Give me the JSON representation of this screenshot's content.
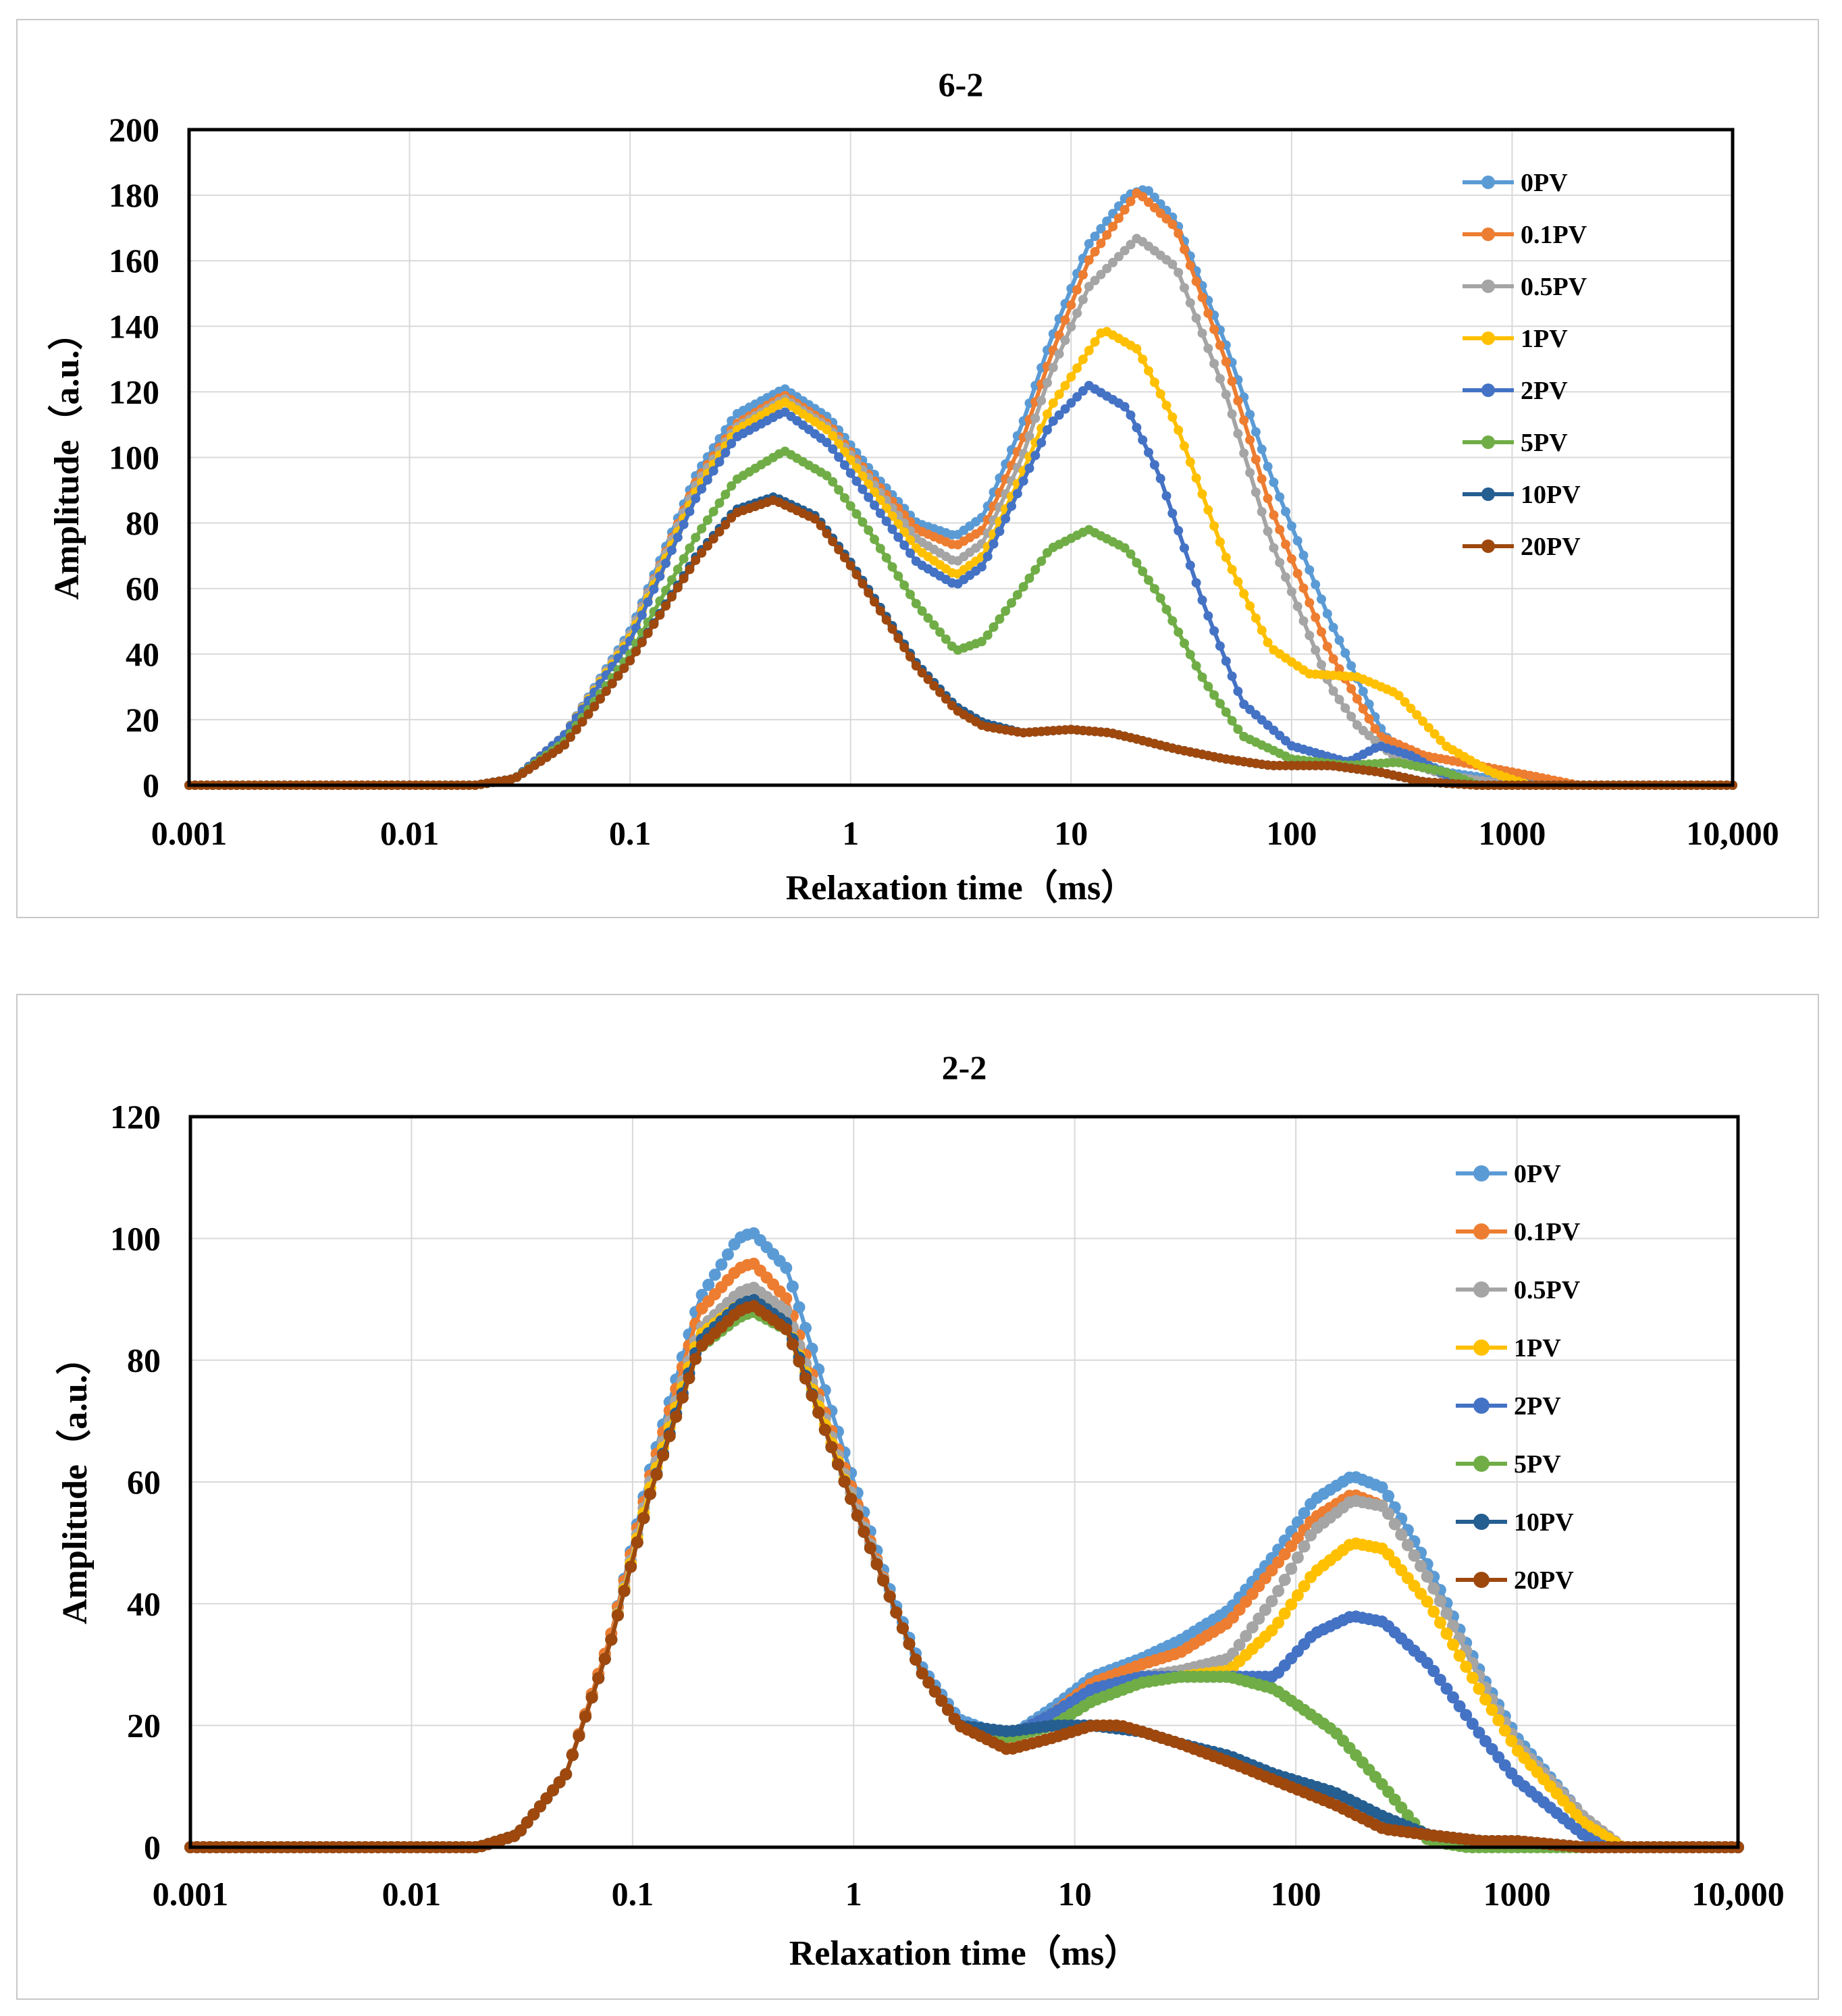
{
  "chart_data": [
    {
      "type": "line",
      "title": "6-2",
      "xlabel": "Relaxation time（ms）",
      "ylabel": "Amplitude（a.u.）",
      "xscale": "log",
      "xlim": [
        0.001,
        10000
      ],
      "ylim": [
        0,
        200
      ],
      "xticks": [
        0.001,
        0.01,
        0.1,
        1,
        10,
        100,
        1000,
        10000
      ],
      "xtick_labels": [
        "0.001",
        "0.01",
        "0.1",
        "1",
        "10",
        "100",
        "1000",
        "10,000"
      ],
      "yticks": [
        0,
        20,
        40,
        60,
        80,
        100,
        120,
        140,
        160,
        180,
        200
      ],
      "grid": true,
      "legend_position": "top-right",
      "series": [
        {
          "name": "0PV",
          "color": "#5b9bd5",
          "x": [
            0.001,
            0.02,
            0.03,
            0.05,
            0.1,
            0.2,
            0.3,
            0.5,
            0.8,
            1.2,
            2,
            3,
            4,
            6,
            8,
            12,
            18,
            22,
            30,
            50,
            80,
            150,
            250,
            300,
            500,
            1000,
            2000,
            10000
          ],
          "y": [
            0,
            0,
            2,
            15,
            47,
            95,
            113,
            121,
            112,
            97,
            80,
            76,
            82,
            110,
            135,
            165,
            180,
            182,
            172,
            135,
            95,
            50,
            18,
            10,
            4,
            1,
            0,
            0
          ]
        },
        {
          "name": "0.1PV",
          "color": "#ed7d31",
          "x": [
            0.001,
            0.02,
            0.03,
            0.05,
            0.1,
            0.2,
            0.3,
            0.5,
            0.8,
            1.2,
            2,
            3,
            4,
            6,
            8,
            12,
            20,
            30,
            50,
            80,
            150,
            250,
            400,
            700,
            1200,
            2000,
            10000
          ],
          "y": [
            0,
            0,
            2,
            15,
            46,
            93,
            110,
            119,
            110,
            95,
            78,
            73,
            78,
            105,
            130,
            160,
            181,
            170,
            130,
            85,
            40,
            15,
            9,
            6,
            3,
            0,
            0
          ]
        },
        {
          "name": "0.5PV",
          "color": "#a5a5a5",
          "x": [
            0.001,
            0.02,
            0.03,
            0.05,
            0.1,
            0.2,
            0.3,
            0.5,
            0.8,
            1.2,
            2,
            3,
            4,
            6,
            8,
            12,
            20,
            30,
            50,
            80,
            150,
            200,
            300,
            500,
            1000,
            10000
          ],
          "y": [
            0,
            0,
            2,
            15,
            46,
            92,
            109,
            118,
            109,
            94,
            75,
            68,
            74,
            100,
            125,
            152,
            167,
            158,
            120,
            75,
            30,
            18,
            8,
            3,
            0,
            0
          ]
        },
        {
          "name": "1PV",
          "color": "#ffc000",
          "x": [
            0.001,
            0.02,
            0.03,
            0.05,
            0.1,
            0.2,
            0.3,
            0.5,
            0.8,
            1.2,
            2,
            3,
            4,
            6,
            8,
            14,
            20,
            30,
            50,
            80,
            120,
            200,
            300,
            500,
            800,
            1200,
            10000
          ],
          "y": [
            0,
            0,
            2,
            15,
            45,
            90,
            108,
            117,
            108,
            92,
            72,
            64,
            70,
            95,
            115,
            139,
            133,
            110,
            70,
            42,
            34,
            33,
            28,
            12,
            4,
            0,
            0
          ]
        },
        {
          "name": "2PV",
          "color": "#4472c4",
          "x": [
            0.001,
            0.02,
            0.03,
            0.05,
            0.1,
            0.2,
            0.3,
            0.5,
            0.8,
            1.2,
            2,
            3,
            4,
            6,
            8,
            12,
            18,
            25,
            40,
            60,
            100,
            180,
            250,
            350,
            500,
            700,
            10000
          ],
          "y": [
            0,
            0,
            2,
            15,
            44,
            88,
            106,
            114,
            104,
            88,
            68,
            61,
            67,
            92,
            110,
            122,
            115,
            95,
            55,
            25,
            12,
            7,
            12,
            9,
            3,
            0,
            0
          ]
        },
        {
          "name": "5PV",
          "color": "#70ad47",
          "x": [
            0.001,
            0.02,
            0.03,
            0.05,
            0.1,
            0.2,
            0.3,
            0.5,
            0.8,
            1.2,
            2,
            3,
            4,
            6,
            8,
            12,
            18,
            25,
            40,
            60,
            100,
            180,
            300,
            500,
            700,
            10000
          ],
          "y": [
            0,
            0,
            2,
            13,
            40,
            76,
            93,
            102,
            94,
            78,
            55,
            41,
            44,
            60,
            72,
            78,
            72,
            58,
            32,
            15,
            8,
            6,
            7,
            4,
            0,
            0
          ]
        },
        {
          "name": "10PV",
          "color": "#255e91",
          "x": [
            0.001,
            0.02,
            0.03,
            0.05,
            0.1,
            0.2,
            0.3,
            0.45,
            0.7,
            1,
            1.5,
            2,
            3,
            4,
            6,
            10,
            15,
            20,
            30,
            50,
            80,
            150,
            250,
            400,
            700,
            10000
          ],
          "y": [
            0,
            0,
            2,
            12,
            38,
            70,
            84,
            88,
            82,
            68,
            50,
            37,
            24,
            19,
            16,
            17,
            16,
            14,
            11,
            8,
            6,
            6,
            4,
            1,
            0,
            0
          ]
        },
        {
          "name": "20PV",
          "color": "#9e480e",
          "x": [
            0.001,
            0.02,
            0.03,
            0.05,
            0.1,
            0.2,
            0.3,
            0.45,
            0.7,
            1,
            1.5,
            2,
            3,
            4,
            6,
            10,
            15,
            20,
            30,
            50,
            80,
            150,
            250,
            400,
            700,
            10000
          ],
          "y": [
            0,
            0,
            2,
            12,
            38,
            69,
            83,
            87,
            81,
            67,
            49,
            36,
            23,
            18,
            16,
            17,
            16,
            14,
            11,
            8,
            6,
            6,
            4,
            1,
            0,
            0
          ]
        }
      ]
    },
    {
      "type": "line",
      "title": "2-2",
      "xlabel": "Relaxation time（ms）",
      "ylabel": "Amplitude（a.u.）",
      "xscale": "log",
      "xlim": [
        0.001,
        10000
      ],
      "ylim": [
        0,
        120
      ],
      "xticks": [
        0.001,
        0.01,
        0.1,
        1,
        10,
        100,
        1000,
        10000
      ],
      "xtick_labels": [
        "0.001",
        "0.01",
        "0.1",
        "1",
        "10",
        "100",
        "1000",
        "10,000"
      ],
      "yticks": [
        0,
        20,
        40,
        60,
        80,
        100,
        120
      ],
      "grid": true,
      "legend_position": "top-right",
      "series": [
        {
          "name": "0PV",
          "color": "#5b9bd5",
          "x": [
            0.001,
            0.02,
            0.03,
            0.05,
            0.08,
            0.12,
            0.2,
            0.3,
            0.35,
            0.5,
            0.7,
            1,
            1.5,
            2,
            3,
            5,
            8,
            12,
            20,
            30,
            50,
            80,
            120,
            180,
            250,
            400,
            700,
            1000,
            2000,
            3000,
            10000
          ],
          "y": [
            0,
            0,
            2,
            12,
            35,
            62,
            90,
            100,
            101,
            95,
            78,
            60,
            41,
            30,
            21,
            18,
            23,
            28,
            31,
            34,
            39,
            48,
            57,
            61,
            59,
            46,
            28,
            18,
            5,
            0,
            0
          ]
        },
        {
          "name": "0.1PV",
          "color": "#ed7d31",
          "x": [
            0.001,
            0.02,
            0.03,
            0.05,
            0.08,
            0.12,
            0.2,
            0.3,
            0.35,
            0.5,
            0.7,
            1,
            1.5,
            2,
            3,
            5,
            8,
            12,
            20,
            30,
            50,
            80,
            120,
            180,
            250,
            400,
            700,
            1000,
            2000,
            3000,
            10000
          ],
          "y": [
            0,
            0,
            2,
            12,
            35,
            61,
            88,
            95,
            96,
            90,
            74,
            58,
            40,
            29,
            20,
            17,
            22,
            27,
            30,
            32,
            37,
            46,
            54,
            58,
            56,
            44,
            27,
            17,
            5,
            0,
            0
          ]
        },
        {
          "name": "0.5PV",
          "color": "#a5a5a5",
          "x": [
            0.001,
            0.02,
            0.03,
            0.05,
            0.08,
            0.12,
            0.2,
            0.3,
            0.35,
            0.5,
            0.7,
            1,
            1.5,
            2,
            3,
            5,
            8,
            12,
            20,
            30,
            50,
            80,
            120,
            180,
            250,
            400,
            700,
            1000,
            2000,
            3000,
            10000
          ],
          "y": [
            0,
            0,
            2,
            12,
            34,
            60,
            85,
            91,
            92,
            88,
            73,
            57,
            40,
            29,
            20,
            18,
            22,
            26,
            28,
            29,
            31,
            41,
            52,
            57,
            56,
            44,
            27,
            17,
            5,
            0,
            0
          ]
        },
        {
          "name": "1PV",
          "color": "#ffc000",
          "x": [
            0.001,
            0.02,
            0.03,
            0.05,
            0.08,
            0.12,
            0.2,
            0.3,
            0.35,
            0.5,
            0.7,
            1,
            1.5,
            2,
            3,
            5,
            8,
            12,
            20,
            30,
            50,
            80,
            120,
            180,
            250,
            400,
            700,
            1000,
            2000,
            3000,
            10000
          ],
          "y": [
            0,
            0,
            2,
            12,
            34,
            59,
            84,
            89,
            90,
            86,
            72,
            56,
            40,
            29,
            20,
            18,
            22,
            26,
            28,
            28,
            29,
            36,
            45,
            50,
            49,
            40,
            25,
            16,
            4,
            0,
            0
          ]
        },
        {
          "name": "2PV",
          "color": "#4472c4",
          "x": [
            0.001,
            0.02,
            0.03,
            0.05,
            0.08,
            0.12,
            0.2,
            0.3,
            0.35,
            0.5,
            0.7,
            1,
            1.5,
            2,
            3,
            5,
            8,
            12,
            20,
            30,
            50,
            80,
            120,
            180,
            250,
            400,
            700,
            1000,
            2000,
            2500,
            10000
          ],
          "y": [
            0,
            0,
            2,
            12,
            34,
            58,
            83,
            88,
            89,
            85,
            71,
            56,
            40,
            29,
            20,
            18,
            22,
            26,
            28,
            28,
            28,
            28,
            35,
            38,
            37,
            30,
            18,
            11,
            2,
            0,
            0
          ]
        },
        {
          "name": "5PV",
          "color": "#70ad47",
          "x": [
            0.001,
            0.02,
            0.03,
            0.05,
            0.08,
            0.12,
            0.2,
            0.3,
            0.35,
            0.5,
            0.7,
            1,
            1.5,
            2,
            3,
            5,
            8,
            12,
            20,
            30,
            50,
            80,
            150,
            250,
            400,
            600,
            10000
          ],
          "y": [
            0,
            0,
            2,
            12,
            34,
            58,
            82,
            87,
            88,
            85,
            71,
            56,
            40,
            29,
            20,
            18,
            20,
            24,
            27,
            28,
            28,
            26,
            19,
            10,
            1,
            0,
            0
          ]
        },
        {
          "name": "10PV",
          "color": "#255e91",
          "x": [
            0.001,
            0.02,
            0.03,
            0.05,
            0.08,
            0.12,
            0.2,
            0.3,
            0.35,
            0.5,
            0.7,
            1,
            1.5,
            2,
            3,
            5,
            8,
            12,
            20,
            30,
            50,
            80,
            150,
            250,
            400,
            700,
            1000,
            2000,
            2500,
            10000
          ],
          "y": [
            0,
            0,
            2,
            12,
            34,
            58,
            83,
            89,
            90,
            86,
            71,
            56,
            40,
            29,
            20,
            19,
            20,
            20,
            19,
            17,
            15,
            12,
            9,
            5,
            2,
            1,
            1,
            0,
            0,
            0
          ]
        },
        {
          "name": "20PV",
          "color": "#9e480e",
          "x": [
            0.001,
            0.02,
            0.03,
            0.05,
            0.08,
            0.12,
            0.2,
            0.3,
            0.35,
            0.5,
            0.7,
            1,
            1.5,
            2,
            3,
            5,
            8,
            12,
            16,
            20,
            30,
            50,
            80,
            150,
            250,
            400,
            700,
            1000,
            2000,
            2500,
            10000
          ],
          "y": [
            0,
            0,
            2,
            12,
            34,
            58,
            82,
            88,
            89,
            85,
            71,
            56,
            40,
            29,
            20,
            16,
            18,
            20,
            20,
            19,
            17,
            14,
            11,
            7,
            3,
            2,
            1,
            1,
            0,
            0,
            0
          ]
        }
      ]
    }
  ]
}
